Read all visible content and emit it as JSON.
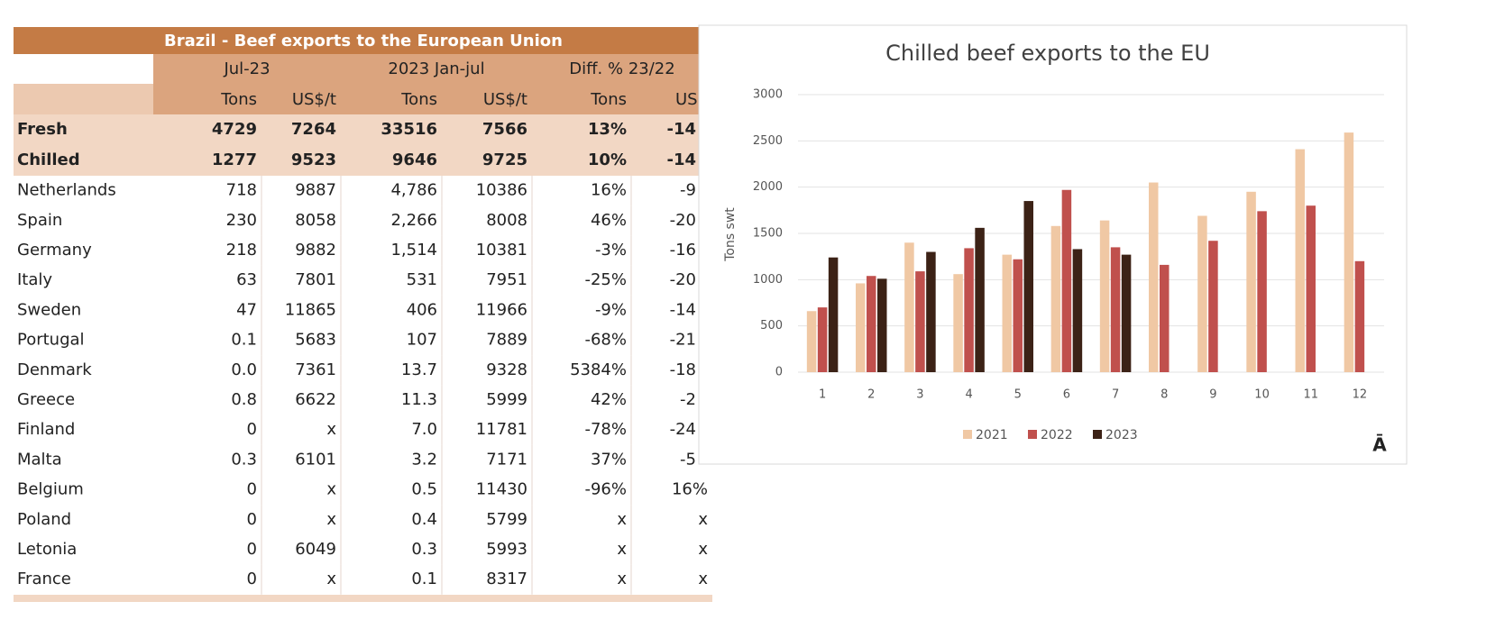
{
  "table": {
    "title": "Brazil - Beef exports to the European Union",
    "groups": [
      "Jul-23",
      "2023 Jan-jul",
      "Diff. % 23/22"
    ],
    "columns": [
      "Tons",
      "US$/t",
      "Tons",
      "US$/t",
      "Tons",
      "US$"
    ],
    "rows": [
      [
        "Fresh",
        "4729",
        "7264",
        "33516",
        "7566",
        "13%",
        "-14"
      ],
      [
        "Chilled",
        "1277",
        "9523",
        "9646",
        "9725",
        "10%",
        "-14"
      ],
      [
        "Netherlands",
        "718",
        "9887",
        "4,786",
        "10386",
        "16%",
        "-9"
      ],
      [
        "Spain",
        "230",
        "8058",
        "2,266",
        "8008",
        "46%",
        "-20"
      ],
      [
        "Germany",
        "218",
        "9882",
        "1,514",
        "10381",
        "-3%",
        "-16"
      ],
      [
        "Italy",
        "63",
        "7801",
        "531",
        "7951",
        "-25%",
        "-20"
      ],
      [
        "Sweden",
        "47",
        "11865",
        "406",
        "11966",
        "-9%",
        "-14"
      ],
      [
        "Portugal",
        "0.1",
        "5683",
        "107",
        "7889",
        "-68%",
        "-21"
      ],
      [
        "Denmark",
        "0.0",
        "7361",
        "13.7",
        "9328",
        "5384%",
        "-18"
      ],
      [
        "Greece",
        "0.8",
        "6622",
        "11.3",
        "5999",
        "42%",
        "-2"
      ],
      [
        "Finland",
        "0",
        "x",
        "7.0",
        "11781",
        "-78%",
        "-24"
      ],
      [
        "Malta",
        "0.3",
        "6101",
        "3.2",
        "7171",
        "37%",
        "-5"
      ],
      [
        "Belgium",
        "0",
        "x",
        "0.5",
        "11430",
        "-96%",
        "16%"
      ],
      [
        "Poland",
        "0",
        "x",
        "0.4",
        "5799",
        "x",
        "x"
      ],
      [
        "Letonia",
        "0",
        "6049",
        "0.3",
        "5993",
        "x",
        "x"
      ],
      [
        "France",
        "0",
        "x",
        "0.1",
        "8317",
        "x",
        "x"
      ]
    ]
  },
  "chart_data": {
    "type": "bar",
    "title": "Chilled beef exports to the EU",
    "y_label": "Tons swt",
    "categories": [
      "1",
      "2",
      "3",
      "4",
      "5",
      "6",
      "7",
      "8",
      "9",
      "10",
      "11",
      "12"
    ],
    "series": [
      {
        "name": "2021",
        "color": "#f0c8a4",
        "values": [
          660,
          960,
          1400,
          1060,
          1270,
          1580,
          1640,
          2050,
          1690,
          1950,
          2410,
          2590
        ]
      },
      {
        "name": "2022",
        "color": "#c0504d",
        "values": [
          700,
          1040,
          1090,
          1340,
          1220,
          1970,
          1350,
          1160,
          1420,
          1740,
          1800,
          1200
        ]
      },
      {
        "name": "2023",
        "color": "#3c2216",
        "values": [
          1240,
          1010,
          1300,
          1560,
          1850,
          1330,
          1270,
          null,
          null,
          null,
          null,
          null
        ]
      }
    ],
    "ylim": [
      0,
      3000
    ],
    "yticks": [
      0,
      500,
      1000,
      1500,
      2000,
      2500,
      3000
    ],
    "grid": true,
    "legend": "bottom"
  },
  "logo": "Ā"
}
